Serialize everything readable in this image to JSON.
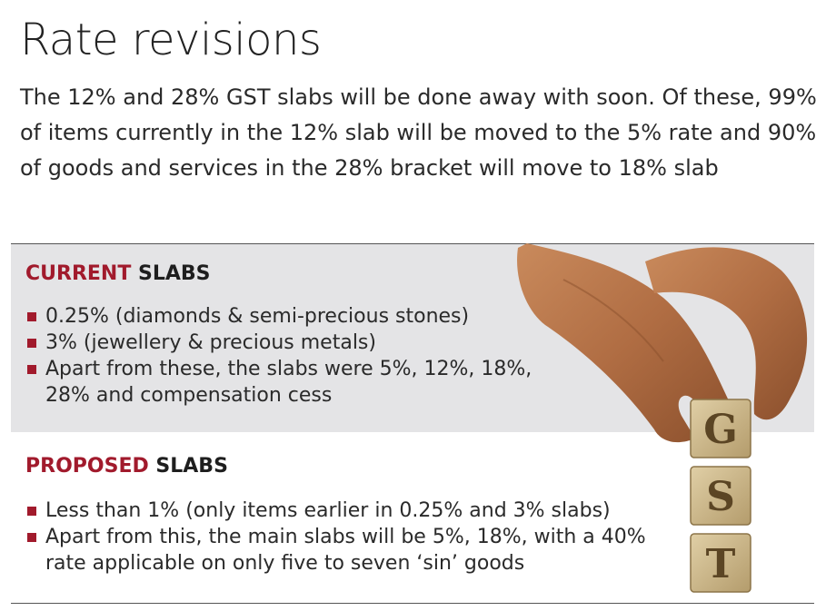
{
  "title": "Rate revisions",
  "intro": "The 12% and 28% GST slabs will be done away with soon. Of these, 99% of items currently in the 12% slab will be moved to the 5% rate and 90% of goods and services in the 28% bracket will move to 18% slab",
  "current": {
    "head_accent": "CURRENT",
    "head_rest": "SLABS",
    "items": [
      "0.25% (diamonds & semi-precious stones)",
      "3% (jewellery & precious metals)",
      "Apart from these, the slabs were 5%, 12%, 18%, 28% and compensation cess"
    ]
  },
  "proposed": {
    "head_accent": "PROPOSED",
    "head_rest": "SLABS",
    "items": [
      "Less than 1% (only items earlier in 0.25% and 3% slabs)",
      "Apart from this, the main slabs will be 5%, 18%, with a 40% rate applicable on only five to seven ‘sin’ goods"
    ]
  },
  "cubes": [
    "G",
    "S",
    "T"
  ],
  "colors": {
    "accent": "#a11a2c",
    "panel": "#e4e4e6",
    "cube_face": "#c9b48a"
  },
  "icons": {
    "bullet": "square-bullet",
    "illustration": "hand-holding-gst-cube-icon"
  }
}
